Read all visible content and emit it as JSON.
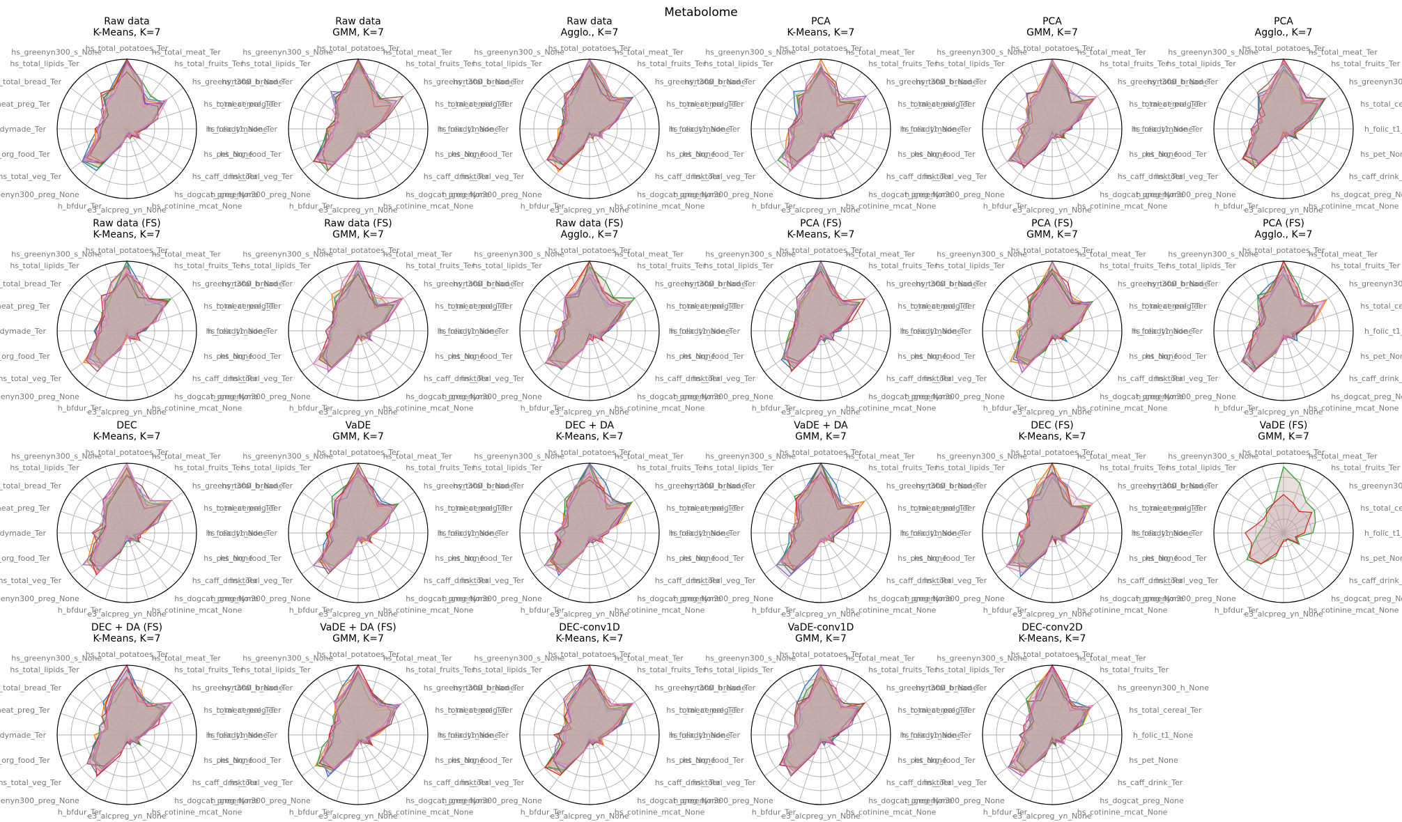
{
  "figure_title": "Metabolome",
  "colors": [
    "#1f77b4",
    "#ff7f0e",
    "#2ca02c",
    "#d62728",
    "#9467bd",
    "#8c564b",
    "#e377c2"
  ],
  "fill_color": "#c0a4a4",
  "chart_data": {
    "type": "radar",
    "variables": [
      "hs_total_potatoes_Ter",
      "hs_total_meat_Ter",
      "hs_total_fruits_Ter",
      "hs_greenyn300_h_None",
      "hs_total_cereal_Ter",
      "h_folic_t1_None",
      "hs_pet_None",
      "hs_caff_drink_Ter",
      "hs_dogcat_preg_None",
      "hs_cotinine_mcat_None",
      "e3_alcpreg_yn_None",
      "h_bfdur_Ter",
      "h_greenyn300_preg_None",
      "hs_total_veg_Ter",
      "hs_org_food_Ter",
      "hs_readymade_Ter",
      "h_meat_preg_Ter",
      "hs_total_bread_Ter",
      "hs_total_lipids_Ter",
      "hs_greenyn300_s_None"
    ],
    "grid": true,
    "panels": [
      {
        "title": "Raw data\nK-Means, K=7",
        "n_clusters": 7
      },
      {
        "title": "Raw data\nGMM, K=7",
        "n_clusters": 7
      },
      {
        "title": "Raw data\nAgglo., K=7",
        "n_clusters": 7
      },
      {
        "title": "PCA\nK-Means, K=7",
        "n_clusters": 7
      },
      {
        "title": "PCA\nGMM, K=7",
        "n_clusters": 7
      },
      {
        "title": "PCA\nAgglo., K=7",
        "n_clusters": 7
      },
      {
        "title": "Raw data (FS)\nK-Means, K=7",
        "n_clusters": 7
      },
      {
        "title": "Raw data (FS)\nGMM, K=7",
        "n_clusters": 7
      },
      {
        "title": "Raw data (FS)\nAgglo., K=7",
        "n_clusters": 7
      },
      {
        "title": "PCA (FS)\nK-Means, K=7",
        "n_clusters": 7
      },
      {
        "title": "PCA (FS)\nGMM, K=7",
        "n_clusters": 7
      },
      {
        "title": "PCA (FS)\nAgglo., K=7",
        "n_clusters": 7
      },
      {
        "title": "DEC\nK-Means, K=7",
        "n_clusters": 7
      },
      {
        "title": "VaDE\nGMM, K=7",
        "n_clusters": 7
      },
      {
        "title": "DEC + DA\nK-Means, K=7",
        "n_clusters": 7
      },
      {
        "title": "VaDE + DA\nGMM, K=7",
        "n_clusters": 7
      },
      {
        "title": "DEC (FS)\nK-Means, K=7",
        "n_clusters": 7
      },
      {
        "title": "VaDE (FS)\nGMM, K=7",
        "n_clusters": 2
      },
      {
        "title": "DEC + DA (FS)\nK-Means, K=7",
        "n_clusters": 7
      },
      {
        "title": "VaDE + DA (FS)\nGMM, K=7",
        "n_clusters": 7
      },
      {
        "title": "DEC-conv1D\nK-Means, K=7",
        "n_clusters": 7
      },
      {
        "title": "VaDE-conv1D\nGMM, K=7",
        "n_clusters": 7
      },
      {
        "title": "DEC-conv2D\nK-Means, K=7",
        "n_clusters": 7
      }
    ],
    "base_profile": [
      0.92,
      0.62,
      0.5,
      0.68,
      0.4,
      0.22,
      0.15,
      0.2,
      0.1,
      0.12,
      0.08,
      0.25,
      0.65,
      0.68,
      0.45,
      0.42,
      0.35,
      0.4,
      0.55,
      0.62
    ],
    "vade_fs_profiles": [
      [
        0.95,
        0.75,
        0.55,
        0.55,
        0.48,
        0.42,
        0.2,
        0.28,
        0.12,
        0.1,
        0.1,
        0.35,
        0.55,
        0.65,
        0.45,
        0.35,
        0.3,
        0.3,
        0.42,
        0.45
      ],
      [
        0.55,
        0.45,
        0.38,
        0.5,
        0.35,
        0.3,
        0.18,
        0.25,
        0.1,
        0.12,
        0.12,
        0.3,
        0.55,
        0.6,
        0.48,
        0.55,
        0.4,
        0.35,
        0.38,
        0.45
      ]
    ]
  }
}
